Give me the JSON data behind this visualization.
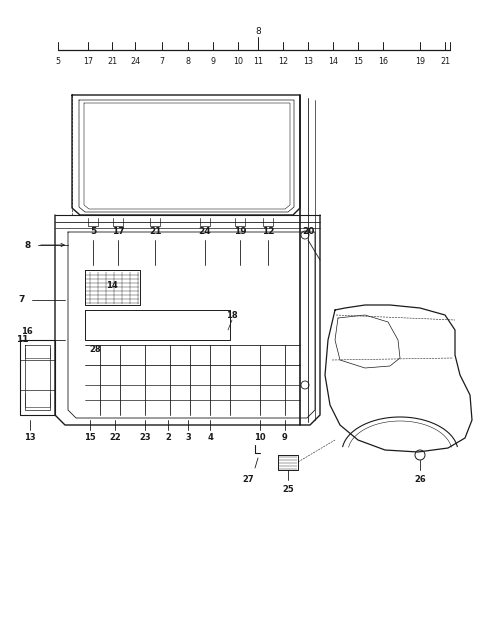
{
  "bg_color": "#ffffff",
  "fig_width": 4.8,
  "fig_height": 6.24,
  "dpi": 100,
  "line_color": "#1a1a1a",
  "font_size": 6.5
}
